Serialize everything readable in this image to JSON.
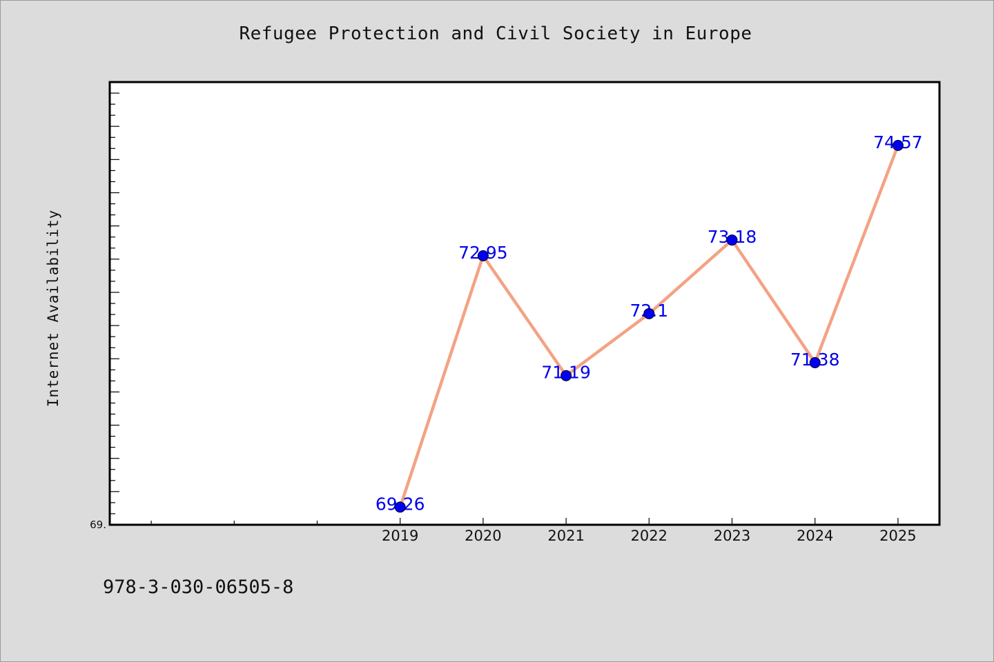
{
  "chart_data": {
    "type": "line",
    "title": "Refugee Protection and Civil Society in Europe",
    "xlabel": "",
    "ylabel": "Internet Availability",
    "categories": [
      "2019",
      "2020",
      "2021",
      "2022",
      "2023",
      "2024",
      "2025"
    ],
    "series": [
      {
        "values": [
          69.26,
          72.95,
          71.19,
          72.1,
          73.18,
          71.38,
          74.57
        ],
        "data_labels": [
          "69.26",
          "72.95",
          "71.19",
          "72.1",
          "73.18",
          "71.38",
          "74.57"
        ]
      }
    ],
    "y_tick_labels": [
      "69."
    ],
    "xlim": [
      2015.5,
      2025.5
    ],
    "ylim": [
      69.0,
      75.5
    ],
    "grid": false,
    "legend": "none",
    "colors": {
      "line": "#f4a284",
      "marker": "#0000ee",
      "data_label": "#0000ee",
      "plot_background": "#ffffff",
      "page_background": "#dcdcdc"
    }
  },
  "footnote": "978-3-030-06505-8"
}
